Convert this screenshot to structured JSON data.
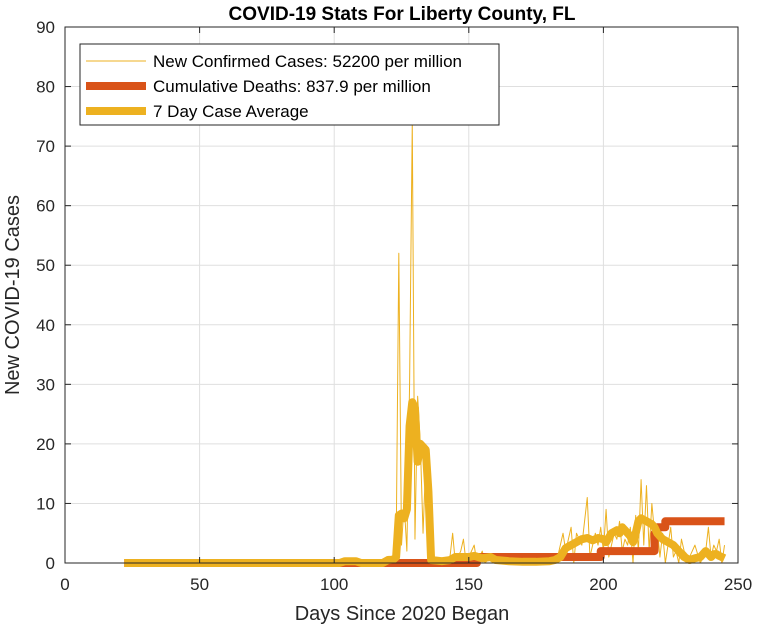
{
  "chart_data": {
    "type": "line",
    "title": "COVID-19 Stats For Liberty County, FL",
    "xlabel": "Days Since 2020 Began",
    "ylabel": "New COVID-19 Cases",
    "xlim": [
      0,
      250
    ],
    "ylim": [
      0,
      90
    ],
    "xticks": [
      0,
      50,
      100,
      150,
      200,
      250
    ],
    "yticks": [
      0,
      10,
      20,
      30,
      40,
      50,
      60,
      70,
      80,
      90
    ],
    "grid": true,
    "legend_position": "top-left",
    "series": [
      {
        "name": "New Confirmed Cases: 52200 per million",
        "color": "#EDB120",
        "style": "thin",
        "points": [
          [
            22,
            0
          ],
          [
            100,
            0
          ],
          [
            105,
            0.8
          ],
          [
            110,
            0
          ],
          [
            118,
            0
          ],
          [
            120,
            1
          ],
          [
            122,
            0
          ],
          [
            123,
            2
          ],
          [
            124,
            52
          ],
          [
            125,
            3
          ],
          [
            126,
            10
          ],
          [
            127,
            2
          ],
          [
            128,
            30
          ],
          [
            129,
            74
          ],
          [
            130,
            4
          ],
          [
            131,
            28
          ],
          [
            132,
            20
          ],
          [
            133,
            5
          ],
          [
            134,
            17
          ],
          [
            135,
            0
          ],
          [
            140,
            0
          ],
          [
            143,
            1
          ],
          [
            144,
            5
          ],
          [
            145,
            0
          ],
          [
            147,
            2
          ],
          [
            148,
            4
          ],
          [
            149,
            0
          ],
          [
            150,
            1
          ],
          [
            152,
            3
          ],
          [
            153,
            0
          ],
          [
            155,
            2
          ],
          [
            156,
            0
          ],
          [
            158,
            1
          ],
          [
            160,
            0
          ],
          [
            165,
            0
          ],
          [
            170,
            0
          ],
          [
            175,
            1
          ],
          [
            180,
            0
          ],
          [
            183,
            1
          ],
          [
            185,
            5
          ],
          [
            186,
            2
          ],
          [
            188,
            6
          ],
          [
            189,
            0
          ],
          [
            190,
            5
          ],
          [
            192,
            3
          ],
          [
            193,
            7
          ],
          [
            194,
            11
          ],
          [
            195,
            1
          ],
          [
            197,
            5
          ],
          [
            198,
            3
          ],
          [
            199,
            6
          ],
          [
            200,
            2
          ],
          [
            201,
            9
          ],
          [
            202,
            1
          ],
          [
            204,
            5
          ],
          [
            205,
            4
          ],
          [
            206,
            7
          ],
          [
            207,
            2
          ],
          [
            208,
            4
          ],
          [
            209,
            3
          ],
          [
            210,
            6
          ],
          [
            211,
            0
          ],
          [
            212,
            8
          ],
          [
            213,
            2
          ],
          [
            214,
            14
          ],
          [
            215,
            3
          ],
          [
            216,
            13
          ],
          [
            217,
            2
          ],
          [
            218,
            10
          ],
          [
            219,
            5
          ],
          [
            220,
            6
          ],
          [
            221,
            1
          ],
          [
            222,
            5
          ],
          [
            223,
            0
          ],
          [
            224,
            3
          ],
          [
            225,
            6
          ],
          [
            226,
            1
          ],
          [
            227,
            2
          ],
          [
            228,
            0
          ],
          [
            229,
            4
          ],
          [
            230,
            2
          ],
          [
            232,
            1
          ],
          [
            234,
            3
          ],
          [
            236,
            0
          ],
          [
            238,
            2
          ],
          [
            239,
            6
          ],
          [
            240,
            1
          ],
          [
            241,
            3
          ],
          [
            242,
            2
          ],
          [
            243,
            4
          ],
          [
            244,
            0
          ],
          [
            245,
            3
          ]
        ]
      },
      {
        "name": "Cumulative Deaths: 837.9 per million",
        "color": "#D95319",
        "style": "step",
        "points": [
          [
            22,
            0
          ],
          [
            153,
            0
          ],
          [
            153,
            1
          ],
          [
            199,
            1
          ],
          [
            199,
            2
          ],
          [
            219,
            2
          ],
          [
            219,
            5
          ],
          [
            220,
            5
          ],
          [
            220,
            6
          ],
          [
            223,
            6
          ],
          [
            223,
            7
          ],
          [
            245,
            7
          ]
        ]
      },
      {
        "name": "7 Day Case Average",
        "color": "#EDB120",
        "style": "thick",
        "points": [
          [
            22,
            0
          ],
          [
            102,
            0
          ],
          [
            104,
            0.3
          ],
          [
            108,
            0.3
          ],
          [
            110,
            0
          ],
          [
            118,
            0
          ],
          [
            120,
            0.5
          ],
          [
            122,
            0.6
          ],
          [
            123,
            1
          ],
          [
            124,
            8
          ],
          [
            125,
            8.3
          ],
          [
            126,
            7.5
          ],
          [
            127,
            9
          ],
          [
            128,
            23
          ],
          [
            129,
            27
          ],
          [
            130,
            26
          ],
          [
            131,
            17
          ],
          [
            132,
            20
          ],
          [
            133,
            19.5
          ],
          [
            134,
            19
          ],
          [
            135,
            12
          ],
          [
            136,
            0.5
          ],
          [
            140,
            0.3
          ],
          [
            143,
            0.5
          ],
          [
            145,
            1
          ],
          [
            148,
            1
          ],
          [
            150,
            1
          ],
          [
            152,
            1.2
          ],
          [
            155,
            0.8
          ],
          [
            158,
            1
          ],
          [
            160,
            0.5
          ],
          [
            165,
            0.3
          ],
          [
            170,
            0.2
          ],
          [
            175,
            0.2
          ],
          [
            180,
            0.3
          ],
          [
            182,
            0.5
          ],
          [
            184,
            1
          ],
          [
            186,
            2.5
          ],
          [
            188,
            3
          ],
          [
            190,
            3.5
          ],
          [
            192,
            4
          ],
          [
            194,
            4.2
          ],
          [
            196,
            3.8
          ],
          [
            198,
            4.2
          ],
          [
            200,
            4
          ],
          [
            201,
            3.5
          ],
          [
            203,
            5
          ],
          [
            205,
            5.5
          ],
          [
            206,
            5
          ],
          [
            207,
            6
          ],
          [
            208,
            5.5
          ],
          [
            209,
            5
          ],
          [
            210,
            4.5
          ],
          [
            211,
            3.5
          ],
          [
            212,
            5
          ],
          [
            213,
            7
          ],
          [
            214,
            7.5
          ],
          [
            216,
            7
          ],
          [
            218,
            6.5
          ],
          [
            219,
            6
          ],
          [
            220,
            5
          ],
          [
            222,
            4
          ],
          [
            224,
            3.5
          ],
          [
            226,
            3
          ],
          [
            228,
            2
          ],
          [
            230,
            1
          ],
          [
            232,
            0.5
          ],
          [
            234,
            0.8
          ],
          [
            236,
            1
          ],
          [
            238,
            2
          ],
          [
            239,
            1.5
          ],
          [
            240,
            1
          ],
          [
            241,
            1.5
          ],
          [
            242,
            1.5
          ],
          [
            243,
            1.2
          ],
          [
            244,
            1
          ],
          [
            245,
            0.8
          ]
        ]
      }
    ]
  }
}
